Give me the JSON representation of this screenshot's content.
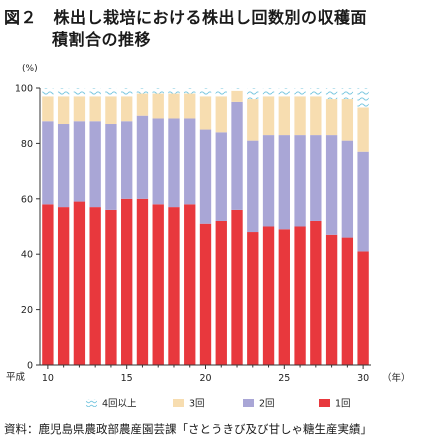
{
  "figure": {
    "title_line1": "図２　株出し栽培における株出し回数別の収穫面",
    "title_line2": "積割合の推移",
    "source": "資料：鹿児島県農政部農産園芸課「さとうきび及び甘しゃ糖生産実績」"
  },
  "colors": {
    "s1": "#e8383d",
    "s2": "#a9a6d6",
    "s3": "#f7ddb0",
    "s4": "#b5e3ef"
  },
  "chart_data": {
    "type": "bar",
    "stacked": true,
    "y_unit": "(%)",
    "x_unit": "（年）",
    "era_label": "平成",
    "x": [
      10,
      11,
      12,
      13,
      14,
      15,
      16,
      17,
      18,
      19,
      20,
      21,
      22,
      23,
      24,
      25,
      26,
      27,
      28,
      29,
      30
    ],
    "xtick_labels": [
      "10",
      "15",
      "20",
      "25",
      "30"
    ],
    "yticks": [
      0,
      20,
      40,
      60,
      80,
      100
    ],
    "ylim": [
      0,
      100
    ],
    "grid": false,
    "legend_position": "bottom",
    "series": [
      {
        "name": "1回",
        "values": [
          58,
          57,
          59,
          57,
          56,
          60,
          60,
          58,
          57,
          58,
          51,
          52,
          56,
          48,
          50,
          49,
          50,
          52,
          47,
          46,
          41
        ]
      },
      {
        "name": "2回",
        "values": [
          30,
          30,
          29,
          31,
          31,
          28,
          30,
          31,
          32,
          31,
          34,
          32,
          39,
          33,
          33,
          34,
          33,
          31,
          36,
          35,
          36
        ]
      },
      {
        "name": "3回",
        "values": [
          9,
          10,
          9,
          9,
          10,
          9,
          8,
          9,
          9,
          9,
          12,
          13,
          4,
          15,
          14,
          14,
          14,
          14,
          13,
          15,
          16
        ]
      },
      {
        "name": "4回以上",
        "values": [
          3,
          3,
          3,
          3,
          3,
          3,
          2,
          2,
          2,
          2,
          3,
          3,
          1,
          4,
          3,
          3,
          3,
          3,
          4,
          4,
          7
        ]
      }
    ]
  }
}
